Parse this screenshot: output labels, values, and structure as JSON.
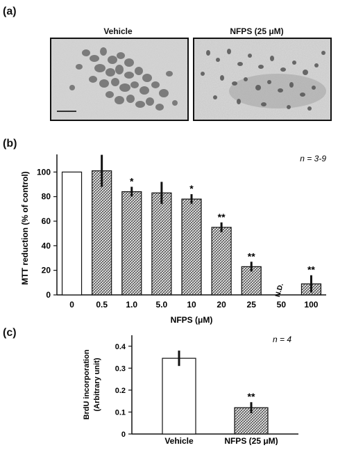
{
  "panel_a": {
    "label": "(a)",
    "images": [
      {
        "title": "Vehicle"
      },
      {
        "title": "NFPS (25 μM)"
      }
    ]
  },
  "chart_data": [
    {
      "panel_label": "(b)",
      "type": "bar",
      "ylabel": "MTT reduction (% of control)",
      "xlabel": "NFPS (μM)",
      "categories": [
        "0",
        "0.5",
        "1.0",
        "5.0",
        "10",
        "20",
        "25",
        "50",
        "100"
      ],
      "values": [
        100,
        101,
        84,
        83,
        78,
        55,
        23,
        null,
        9
      ],
      "errors": [
        0,
        13,
        4,
        9,
        4,
        4,
        4,
        null,
        7
      ],
      "significance": [
        "",
        "",
        "*",
        "",
        "*",
        "**",
        "**",
        "",
        "**"
      ],
      "bar_annotation": {
        "category": "50",
        "text": "N.D."
      },
      "styles": [
        "open",
        "hatched",
        "hatched",
        "hatched",
        "hatched",
        "hatched",
        "hatched",
        "hatched",
        "hatched"
      ],
      "ylim": [
        0,
        120
      ],
      "yticks": [
        0,
        20,
        40,
        60,
        80,
        100
      ],
      "n_label": "n = 3-9"
    },
    {
      "panel_label": "(c)",
      "type": "bar",
      "ylabel": [
        "BrdU incorporation",
        "(Arbitrary unit)"
      ],
      "xlabel": "",
      "categories": [
        "Vehicle",
        "NFPS (25 μM)"
      ],
      "values": [
        0.345,
        0.12
      ],
      "errors": [
        0.035,
        0.025
      ],
      "significance": [
        "",
        "**"
      ],
      "styles": [
        "open",
        "hatched"
      ],
      "ylim": [
        0,
        0.45
      ],
      "yticks": [
        "0",
        "0.1",
        "0.2",
        "0.3",
        "0.4"
      ],
      "n_label": "n = 4"
    }
  ]
}
